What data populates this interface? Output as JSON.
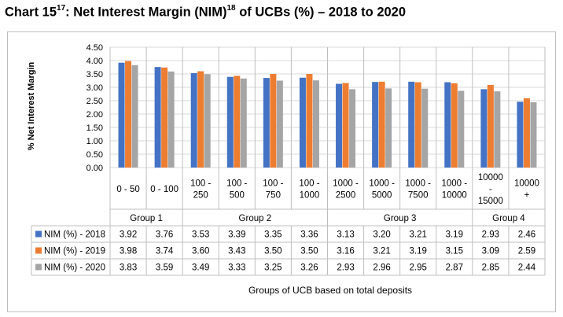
{
  "title": {
    "prefix": "Chart 15",
    "sup1": "17",
    "middle": ": Net Interest Margin (NIM)",
    "sup2": "18",
    "suffix": " of UCBs (%) – 2018 to 2020"
  },
  "chart_data": {
    "type": "bar",
    "ylabel": "% Net Interest Margin",
    "xlabel": "Groups of UCB based on total deposits",
    "ylim": [
      0,
      4.5
    ],
    "yticks": [
      "0.00",
      "0.50",
      "1.00",
      "1.50",
      "2.00",
      "2.50",
      "3.00",
      "3.50",
      "4.00",
      "4.50"
    ],
    "grid": true,
    "legend": "data-table",
    "categories": [
      [
        "0 - 50"
      ],
      [
        "0 - 100"
      ],
      [
        "100 -",
        "250"
      ],
      [
        "100 -",
        "500"
      ],
      [
        "100 -",
        "750"
      ],
      [
        "100 -",
        "1000"
      ],
      [
        "1000 -",
        "2500"
      ],
      [
        "1000 -",
        "5000"
      ],
      [
        "1000 -",
        "7500"
      ],
      [
        "1000 -",
        "10000"
      ],
      [
        "10000",
        "-",
        "15000"
      ],
      [
        "10000",
        "+"
      ]
    ],
    "groups": [
      {
        "label": "Group 1",
        "span": 2
      },
      {
        "label": "Group 2",
        "span": 4
      },
      {
        "label": "Group 3",
        "span": 4
      },
      {
        "label": "Group 4",
        "span": 2
      }
    ],
    "series": [
      {
        "name": "NIM (%) - 2018",
        "color": "#4472C4",
        "values": [
          3.92,
          3.76,
          3.53,
          3.39,
          3.35,
          3.36,
          3.13,
          3.2,
          3.21,
          3.19,
          2.93,
          2.46
        ],
        "labels": [
          "3.92",
          "3.76",
          "3.53",
          "3.39",
          "3.35",
          "3.36",
          "3.13",
          "3.20",
          "3.21",
          "3.19",
          "2.93",
          "2.46"
        ]
      },
      {
        "name": "NIM (%) - 2019",
        "color": "#ED7D31",
        "values": [
          3.98,
          3.74,
          3.6,
          3.43,
          3.5,
          3.5,
          3.16,
          3.21,
          3.19,
          3.15,
          3.09,
          2.59
        ],
        "labels": [
          "3.98",
          "3.74",
          "3.60",
          "3.43",
          "3.50",
          "3.50",
          "3.16",
          "3.21",
          "3.19",
          "3.15",
          "3.09",
          "2.59"
        ]
      },
      {
        "name": "NIM (%) - 2020",
        "color": "#A5A5A5",
        "values": [
          3.83,
          3.59,
          3.49,
          3.33,
          3.25,
          3.26,
          2.93,
          2.96,
          2.95,
          2.87,
          2.85,
          2.44
        ],
        "labels": [
          "3.83",
          "3.59",
          "3.49",
          "3.33",
          "3.25",
          "3.26",
          "2.93",
          "2.96",
          "2.95",
          "2.87",
          "2.85",
          "2.44"
        ]
      }
    ]
  }
}
